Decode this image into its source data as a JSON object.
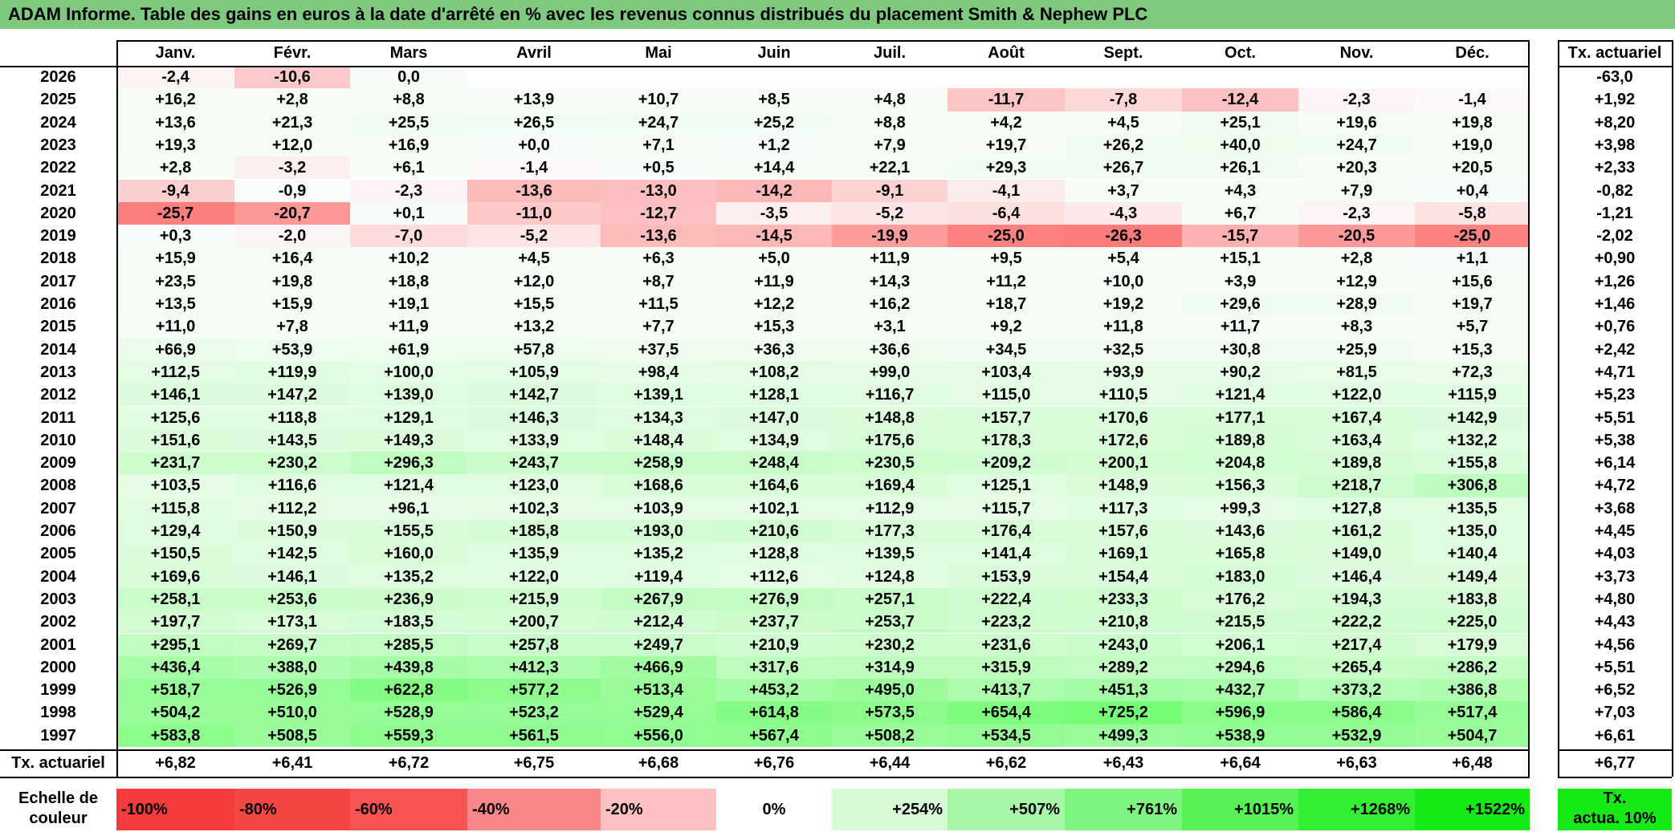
{
  "title": "ADAM Informe. Table des gains en euros à la date d'arrêté en % avec les revenus connus distribués du placement Smith & Nephew PLC",
  "chart_data": {
    "type": "heatmap",
    "months": [
      "Janv.",
      "Févr.",
      "Mars",
      "Avril",
      "Mai",
      "Juin",
      "Juil.",
      "Août",
      "Sept.",
      "Oct.",
      "Nov.",
      "Déc."
    ],
    "rate_header": "Tx. actuariel",
    "rows": [
      {
        "year": "2026",
        "values": [
          "-2,4",
          "-10,6",
          "0,0",
          "",
          "",
          "",
          "",
          "",
          "",
          "",
          "",
          ""
        ],
        "rate": "-63,0"
      },
      {
        "year": "2025",
        "values": [
          "+16,2",
          "+2,8",
          "+8,8",
          "+13,9",
          "+10,7",
          "+8,5",
          "+4,8",
          "-11,7",
          "-7,8",
          "-12,4",
          "-2,3",
          "-1,4"
        ],
        "rate": "+1,92"
      },
      {
        "year": "2024",
        "values": [
          "+13,6",
          "+21,3",
          "+25,5",
          "+26,5",
          "+24,7",
          "+25,2",
          "+8,8",
          "+4,2",
          "+4,5",
          "+25,1",
          "+19,6",
          "+19,8"
        ],
        "rate": "+8,20"
      },
      {
        "year": "2023",
        "values": [
          "+19,3",
          "+12,0",
          "+16,9",
          "+0,0",
          "+7,1",
          "+1,2",
          "+7,9",
          "+19,7",
          "+26,2",
          "+40,0",
          "+24,7",
          "+19,0"
        ],
        "rate": "+3,98"
      },
      {
        "year": "2022",
        "values": [
          "+2,8",
          "-3,2",
          "+6,1",
          "-1,4",
          "+0,5",
          "+14,4",
          "+22,1",
          "+29,3",
          "+26,7",
          "+26,1",
          "+20,3",
          "+20,5"
        ],
        "rate": "+2,33"
      },
      {
        "year": "2021",
        "values": [
          "-9,4",
          "-0,9",
          "-2,3",
          "-13,6",
          "-13,0",
          "-14,2",
          "-9,1",
          "-4,1",
          "+3,7",
          "+4,3",
          "+7,9",
          "+0,4"
        ],
        "rate": "-0,82"
      },
      {
        "year": "2020",
        "values": [
          "-25,7",
          "-20,7",
          "+0,1",
          "-11,0",
          "-12,7",
          "-3,5",
          "-5,2",
          "-6,4",
          "-4,3",
          "+6,7",
          "-2,3",
          "-5,8"
        ],
        "rate": "-1,21"
      },
      {
        "year": "2019",
        "values": [
          "+0,3",
          "-2,0",
          "-7,0",
          "-5,2",
          "-13,6",
          "-14,5",
          "-19,9",
          "-25,0",
          "-26,3",
          "-15,7",
          "-20,5",
          "-25,0"
        ],
        "rate": "-2,02"
      },
      {
        "year": "2018",
        "values": [
          "+15,9",
          "+16,4",
          "+10,2",
          "+4,5",
          "+6,3",
          "+5,0",
          "+11,9",
          "+9,5",
          "+5,4",
          "+15,1",
          "+2,8",
          "+1,1"
        ],
        "rate": "+0,90"
      },
      {
        "year": "2017",
        "values": [
          "+23,5",
          "+19,8",
          "+18,8",
          "+12,0",
          "+8,7",
          "+11,9",
          "+14,3",
          "+11,2",
          "+10,0",
          "+3,9",
          "+12,9",
          "+15,6"
        ],
        "rate": "+1,26"
      },
      {
        "year": "2016",
        "values": [
          "+13,5",
          "+15,9",
          "+19,1",
          "+15,5",
          "+11,5",
          "+12,2",
          "+16,2",
          "+18,7",
          "+19,2",
          "+29,6",
          "+28,9",
          "+19,7"
        ],
        "rate": "+1,46"
      },
      {
        "year": "2015",
        "values": [
          "+11,0",
          "+7,8",
          "+11,9",
          "+13,2",
          "+7,7",
          "+15,3",
          "+3,1",
          "+9,2",
          "+11,8",
          "+11,7",
          "+8,3",
          "+5,7"
        ],
        "rate": "+0,76"
      },
      {
        "year": "2014",
        "values": [
          "+66,9",
          "+53,9",
          "+61,9",
          "+57,8",
          "+37,5",
          "+36,3",
          "+36,6",
          "+34,5",
          "+32,5",
          "+30,8",
          "+25,9",
          "+15,3"
        ],
        "rate": "+2,42"
      },
      {
        "year": "2013",
        "values": [
          "+112,5",
          "+119,9",
          "+100,0",
          "+105,9",
          "+98,4",
          "+108,2",
          "+99,0",
          "+103,4",
          "+93,9",
          "+90,2",
          "+81,5",
          "+72,3"
        ],
        "rate": "+4,71"
      },
      {
        "year": "2012",
        "values": [
          "+146,1",
          "+147,2",
          "+139,0",
          "+142,7",
          "+139,1",
          "+128,1",
          "+116,7",
          "+115,0",
          "+110,5",
          "+121,4",
          "+122,0",
          "+115,9"
        ],
        "rate": "+5,23"
      },
      {
        "year": "2011",
        "values": [
          "+125,6",
          "+118,8",
          "+129,1",
          "+146,3",
          "+134,3",
          "+147,0",
          "+148,8",
          "+157,7",
          "+170,6",
          "+177,1",
          "+167,4",
          "+142,9"
        ],
        "rate": "+5,51"
      },
      {
        "year": "2010",
        "values": [
          "+151,6",
          "+143,5",
          "+149,3",
          "+133,9",
          "+148,4",
          "+134,9",
          "+175,6",
          "+178,3",
          "+172,6",
          "+189,8",
          "+163,4",
          "+132,2"
        ],
        "rate": "+5,38"
      },
      {
        "year": "2009",
        "values": [
          "+231,7",
          "+230,2",
          "+296,3",
          "+243,7",
          "+258,9",
          "+248,4",
          "+230,5",
          "+209,2",
          "+200,1",
          "+204,8",
          "+189,8",
          "+155,8"
        ],
        "rate": "+6,14"
      },
      {
        "year": "2008",
        "values": [
          "+103,5",
          "+116,6",
          "+121,4",
          "+123,0",
          "+168,6",
          "+164,6",
          "+169,4",
          "+125,1",
          "+148,9",
          "+156,3",
          "+218,7",
          "+306,8"
        ],
        "rate": "+4,72"
      },
      {
        "year": "2007",
        "values": [
          "+115,8",
          "+112,2",
          "+96,1",
          "+102,3",
          "+103,9",
          "+102,1",
          "+112,9",
          "+115,7",
          "+117,3",
          "+99,3",
          "+127,8",
          "+135,5"
        ],
        "rate": "+3,68"
      },
      {
        "year": "2006",
        "values": [
          "+129,4",
          "+150,9",
          "+155,5",
          "+185,8",
          "+193,0",
          "+210,6",
          "+177,3",
          "+176,4",
          "+157,6",
          "+143,6",
          "+161,2",
          "+135,0"
        ],
        "rate": "+4,45"
      },
      {
        "year": "2005",
        "values": [
          "+150,5",
          "+142,5",
          "+160,0",
          "+135,9",
          "+135,2",
          "+128,8",
          "+139,5",
          "+141,4",
          "+169,1",
          "+165,8",
          "+149,0",
          "+140,4"
        ],
        "rate": "+4,03"
      },
      {
        "year": "2004",
        "values": [
          "+169,6",
          "+146,1",
          "+135,2",
          "+122,0",
          "+119,4",
          "+112,6",
          "+124,8",
          "+153,9",
          "+154,4",
          "+183,0",
          "+146,4",
          "+149,4"
        ],
        "rate": "+3,73"
      },
      {
        "year": "2003",
        "values": [
          "+258,1",
          "+253,6",
          "+236,9",
          "+215,9",
          "+267,9",
          "+276,9",
          "+257,1",
          "+222,4",
          "+233,3",
          "+176,2",
          "+194,3",
          "+183,8"
        ],
        "rate": "+4,80"
      },
      {
        "year": "2002",
        "values": [
          "+197,7",
          "+173,1",
          "+183,5",
          "+200,7",
          "+212,4",
          "+237,7",
          "+253,7",
          "+223,2",
          "+210,8",
          "+215,5",
          "+222,2",
          "+225,0"
        ],
        "rate": "+4,43"
      },
      {
        "year": "2001",
        "values": [
          "+295,1",
          "+269,7",
          "+285,5",
          "+257,8",
          "+249,7",
          "+210,9",
          "+230,2",
          "+231,6",
          "+243,0",
          "+206,1",
          "+217,4",
          "+179,9"
        ],
        "rate": "+4,56"
      },
      {
        "year": "2000",
        "values": [
          "+436,4",
          "+388,0",
          "+439,8",
          "+412,3",
          "+466,9",
          "+317,6",
          "+314,9",
          "+315,9",
          "+289,2",
          "+294,6",
          "+265,4",
          "+286,2"
        ],
        "rate": "+5,51"
      },
      {
        "year": "1999",
        "values": [
          "+518,7",
          "+526,9",
          "+622,8",
          "+577,2",
          "+513,4",
          "+453,2",
          "+495,0",
          "+413,7",
          "+451,3",
          "+432,7",
          "+373,2",
          "+386,8"
        ],
        "rate": "+6,52"
      },
      {
        "year": "1998",
        "values": [
          "+504,2",
          "+510,0",
          "+528,9",
          "+523,2",
          "+529,4",
          "+614,8",
          "+573,5",
          "+654,4",
          "+725,2",
          "+596,9",
          "+586,4",
          "+517,4"
        ],
        "rate": "+7,03"
      },
      {
        "year": "1997",
        "values": [
          "+583,8",
          "+508,5",
          "+559,3",
          "+561,5",
          "+556,0",
          "+567,4",
          "+508,2",
          "+534,5",
          "+499,3",
          "+538,9",
          "+532,9",
          "+504,7"
        ],
        "rate": "+6,61"
      }
    ],
    "footer": {
      "label": "Tx. actuariel",
      "values": [
        "+6,82",
        "+6,41",
        "+6,72",
        "+6,75",
        "+6,68",
        "+6,76",
        "+6,44",
        "+6,62",
        "+6,43",
        "+6,64",
        "+6,63",
        "+6,48"
      ],
      "rate": "+6,77"
    },
    "scale": {
      "label_line1": "Echelle de",
      "label_line2": "couleur",
      "items": [
        {
          "label": "-100%",
          "color": "#f33b3b",
          "align": "left"
        },
        {
          "label": "-80%",
          "color": "#f54646",
          "align": "left"
        },
        {
          "label": "-60%",
          "color": "#f75353",
          "align": "left"
        },
        {
          "label": "-40%",
          "color": "#f88888",
          "align": "left"
        },
        {
          "label": "-20%",
          "color": "#fcc0c0",
          "align": "left"
        },
        {
          "label": "0%",
          "color": "#ffffff",
          "align": "center"
        },
        {
          "label": "+254%",
          "color": "#d6fbd6",
          "align": "right"
        },
        {
          "label": "+507%",
          "color": "#a8f7a8",
          "align": "right"
        },
        {
          "label": "+761%",
          "color": "#7ef57e",
          "align": "right"
        },
        {
          "label": "+1015%",
          "color": "#56f256",
          "align": "right"
        },
        {
          "label": "+1268%",
          "color": "#33ef33",
          "align": "right"
        },
        {
          "label": "+1522%",
          "color": "#16ea16",
          "align": "right"
        }
      ],
      "rate_line1": "Tx.",
      "rate_line2": "actua. 10%",
      "rate_color": "#16ea16"
    }
  }
}
